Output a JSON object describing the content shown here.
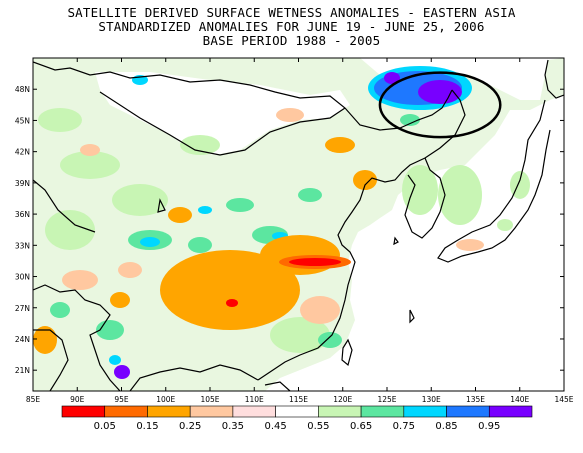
{
  "title": {
    "line1": "SATELLITE DERIVED SURFACE WETNESS ANOMALIES - EASTERN ASIA",
    "line2": "STANDARDIZED ANOMALIES FOR JUNE 19 - JUNE 25, 2006",
    "line3": "BASE PERIOD 1988 - 2005"
  },
  "map": {
    "lon_range": [
      85,
      145
    ],
    "lat_range": [
      19,
      51
    ],
    "lat_ticks": [
      "21N",
      "24N",
      "27N",
      "30N",
      "33N",
      "36N",
      "39N",
      "42N",
      "45N",
      "48N"
    ],
    "lon_ticks": [
      "85E",
      "90E",
      "95E",
      "100E",
      "105E",
      "110E",
      "115E",
      "120E",
      "125E",
      "130E",
      "135E",
      "140E",
      "145E"
    ],
    "lat_tick_values": [
      21,
      24,
      27,
      30,
      33,
      36,
      39,
      42,
      45,
      48
    ],
    "lon_tick_values": [
      85,
      90,
      95,
      100,
      105,
      110,
      115,
      120,
      125,
      130,
      135,
      140,
      145
    ],
    "highlight_ellipse_center": [
      131,
      46.5
    ],
    "highlight_ellipse_radius_deg": [
      6.8,
      3.1
    ]
  },
  "colorbar": {
    "labels": [
      "0.05",
      "0.15",
      "0.25",
      "0.35",
      "0.45",
      "0.55",
      "0.65",
      "0.75",
      "0.85",
      "0.95"
    ],
    "colors": [
      "#ff0000",
      "#ff6a00",
      "#ffa500",
      "#ffc8a0",
      "#ffdede",
      "#ffffff",
      "#c8f5b4",
      "#5ce6a0",
      "#00d7ff",
      "#1e78ff",
      "#7800ff"
    ]
  }
}
